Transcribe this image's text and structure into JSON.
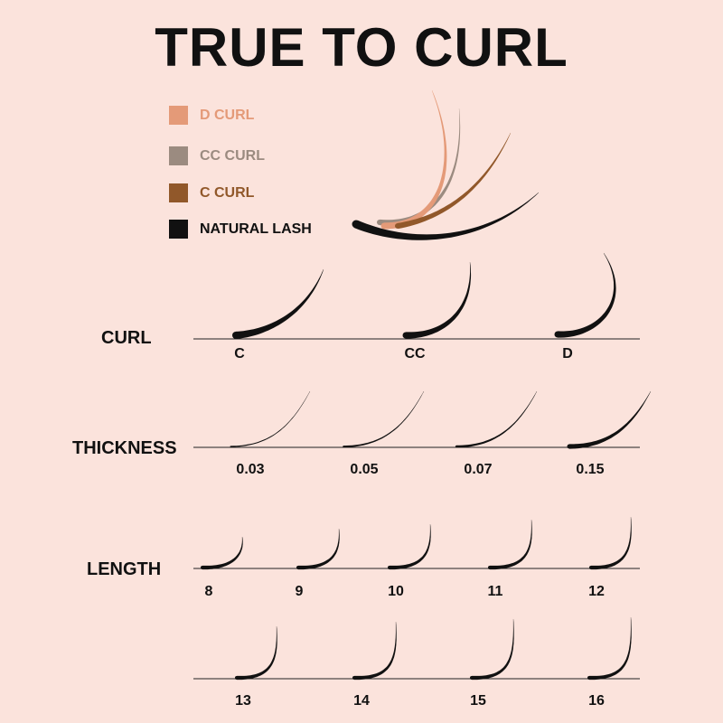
{
  "title": "TRUE TO CURL",
  "colors": {
    "background": "#fbe3dc",
    "ink": "#111111"
  },
  "legend": [
    {
      "label": "D CURL",
      "color": "#e49a78"
    },
    {
      "label": "CC CURL",
      "color": "#9b8b80"
    },
    {
      "label": "C CURL",
      "color": "#91582a"
    },
    {
      "label": "NATURAL LASH",
      "color": "#111111"
    }
  ],
  "rows": {
    "curl": {
      "label": "CURL",
      "items": [
        "C",
        "CC",
        "D"
      ]
    },
    "thickness": {
      "label": "THICKNESS",
      "items": [
        "0.03",
        "0.05",
        "0.07",
        "0.15"
      ]
    },
    "length": {
      "label": "LENGTH",
      "items": [
        "8",
        "9",
        "10",
        "11",
        "12",
        "13",
        "14",
        "15",
        "16"
      ]
    }
  }
}
